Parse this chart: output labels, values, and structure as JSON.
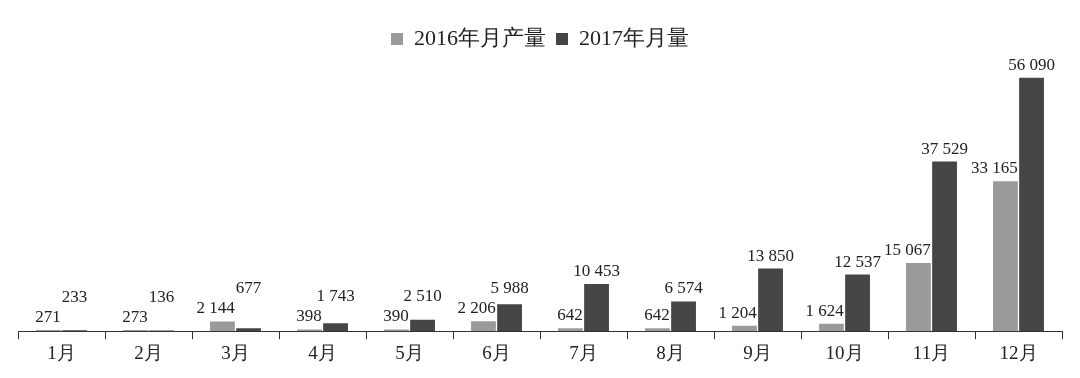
{
  "chart_data": {
    "type": "bar",
    "categories": [
      "1月",
      "2月",
      "3月",
      "4月",
      "5月",
      "6月",
      "7月",
      "8月",
      "9月",
      "10月",
      "11月",
      "12月"
    ],
    "series": [
      {
        "name": "2016年月产量",
        "color": "#9a9a9a",
        "values": [
          271,
          273,
          2144,
          398,
          390,
          2206,
          642,
          642,
          1204,
          1624,
          15067,
          33165
        ],
        "value_labels": [
          "271",
          "273",
          "2 144",
          "398",
          "390",
          "2 206",
          "642",
          "642",
          "1 204",
          "1 624",
          "15 067",
          "33 165"
        ]
      },
      {
        "name": "2017年月量",
        "color": "#454545",
        "values": [
          233,
          136,
          677,
          1743,
          2510,
          5988,
          10453,
          6574,
          13850,
          12537,
          37529,
          56090
        ],
        "value_labels": [
          "233",
          "136",
          "677",
          "1 743",
          "2 510",
          "5 988",
          "10 453",
          "6 574",
          "13 850",
          "12 537",
          "37 529",
          "56 090"
        ]
      }
    ],
    "legend": "top",
    "grid": false
  }
}
